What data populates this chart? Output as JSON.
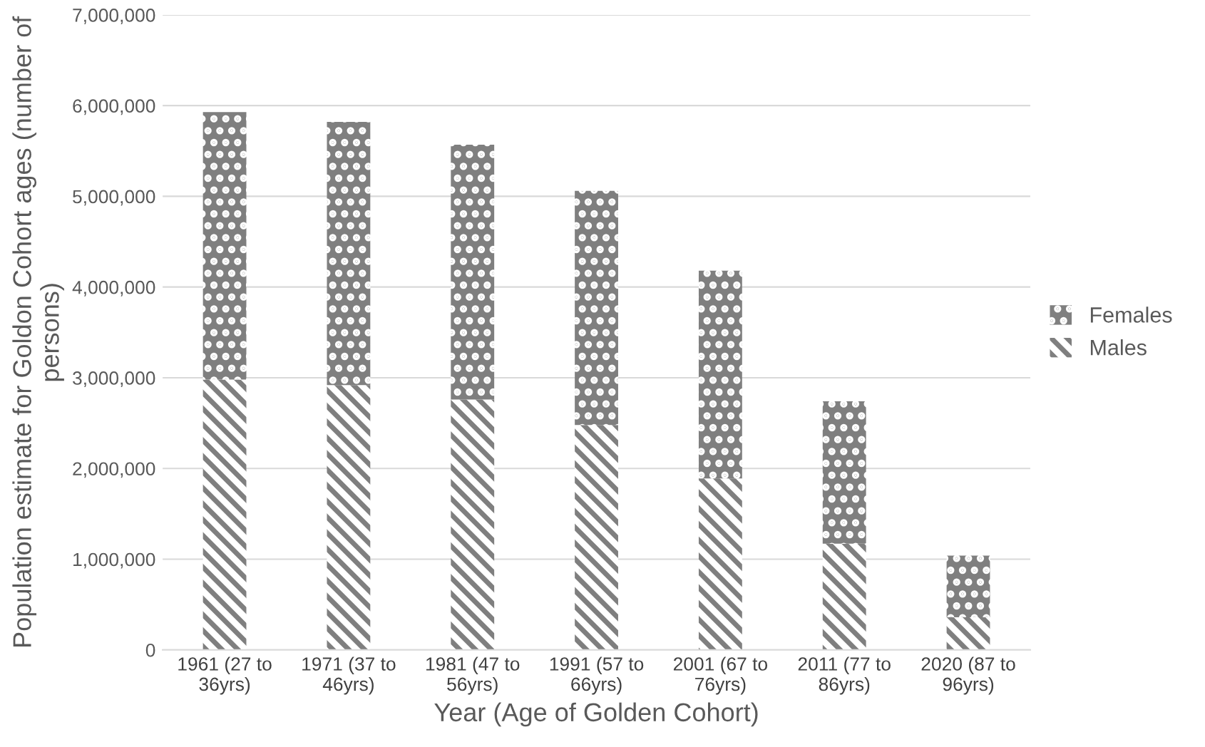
{
  "chart_data": {
    "type": "bar",
    "stacked": true,
    "xlabel": "Year (Age of Golden Cohort)",
    "ylabel": "Population estimate for Goldon Cohort ages (number of persons)",
    "categories": [
      "1961 (27 to 36yrs)",
      "1971 (37 to 46yrs)",
      "1981 (47 to 56yrs)",
      "1991 (57 to 66yrs)",
      "2001 (67 to 76yrs)",
      "2011 (77 to 86yrs)",
      "2020 (87 to 96yrs)"
    ],
    "series": [
      {
        "name": "Males",
        "color": "#7f7f7f",
        "values": [
          2980000,
          2920000,
          2760000,
          2480000,
          1890000,
          1170000,
          360000
        ]
      },
      {
        "name": "Females",
        "color": "#7f7f7f",
        "values": [
          2950000,
          2900000,
          2810000,
          2580000,
          2290000,
          1570000,
          680000
        ]
      }
    ],
    "ylim": [
      0,
      7000000
    ],
    "yticks": [
      0,
      {
        "value": 1000000,
        "label": "1,000,000"
      },
      {
        "value": 2000000,
        "label": "2,000,000"
      },
      {
        "value": 3000000,
        "label": "3,000,000"
      },
      {
        "value": 4000000,
        "label": "4,000,000"
      },
      {
        "value": 5000000,
        "label": "5,000,000"
      },
      {
        "value": 6000000,
        "label": "6,000,000"
      },
      {
        "value": 7000000,
        "label": "7,000,000"
      }
    ],
    "grid": "y",
    "legend": "right"
  }
}
